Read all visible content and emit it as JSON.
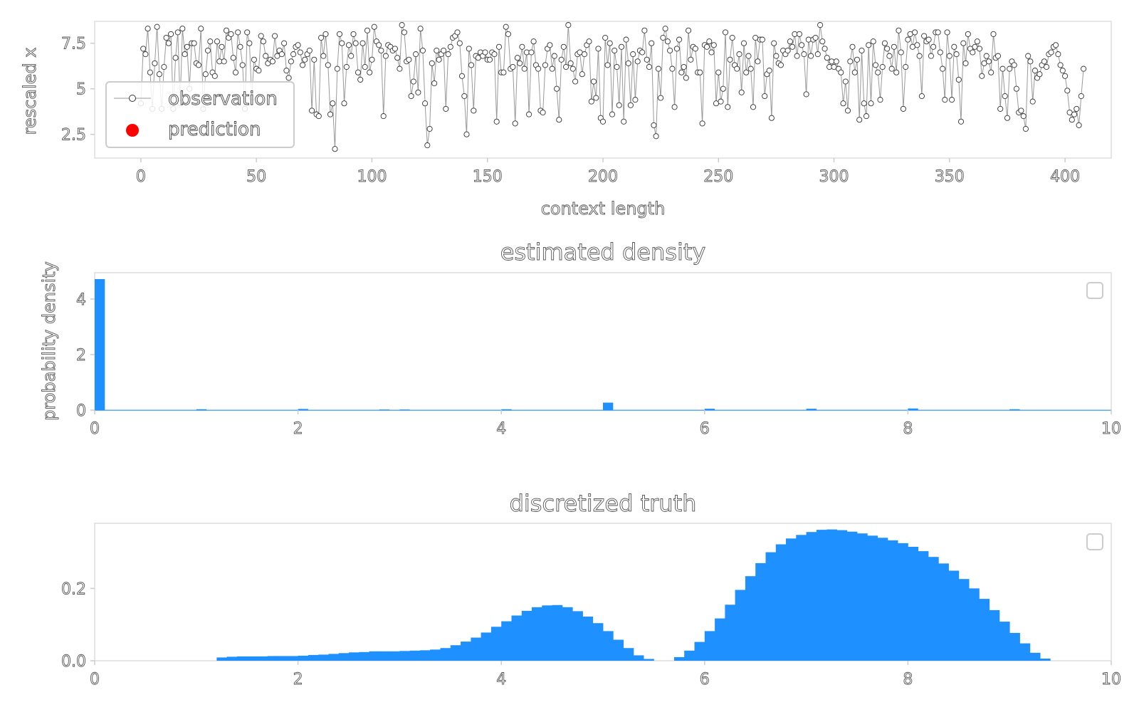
{
  "colors": {
    "bar": "#1e90ff",
    "observation_line": "#999999",
    "prediction": "#ff0000",
    "frame": "#dddddd"
  },
  "chart_data": [
    {
      "id": "series",
      "type": "line",
      "xlabel": "context length",
      "ylabel": "rescaled x",
      "xlim": [
        -20,
        420
      ],
      "ylim": [
        1.2,
        8.7
      ],
      "xticks": [
        0,
        50,
        100,
        150,
        200,
        250,
        300,
        350,
        400
      ],
      "yticks": [
        2.5,
        5.0,
        7.5
      ],
      "legend": {
        "placement": "lower-left",
        "entries": [
          "observation",
          "prediction"
        ]
      },
      "series": [
        {
          "name": "observation",
          "x_start": 0,
          "x_step": 1,
          "values": [
            4.2,
            7.2,
            6.9,
            8.3,
            5.9,
            3.9,
            6.4,
            8.4,
            5.8,
            3.9,
            6.2,
            7.8,
            7.5,
            8.0,
            3.9,
            6.7,
            8.1,
            4.2,
            8.3,
            6.9,
            7.3,
            5.0,
            7.5,
            7.5,
            6.4,
            6.3,
            8.3,
            3.9,
            5.8,
            7.1,
            7.6,
            5.9,
            5.7,
            7.6,
            6.5,
            7.3,
            6.5,
            8.2,
            7.8,
            8.0,
            6.7,
            5.9,
            8.1,
            7.3,
            6.3,
            3.9,
            8.1,
            7.5,
            4.5,
            6.6,
            6.1,
            6.0,
            7.9,
            7.6,
            6.8,
            6.4,
            6.6,
            6.5,
            7.9,
            6.8,
            7.1,
            6.9,
            7.5,
            6.0,
            5.6,
            6.5,
            6.9,
            7.3,
            7.4,
            7.0,
            6.3,
            6.6,
            6.9,
            7.1,
            3.8,
            6.6,
            3.6,
            3.5,
            7.8,
            6.8,
            8.0,
            6.3,
            3.6,
            4.2,
            1.7,
            6.1,
            8.0,
            7.5,
            4.2,
            6.2,
            7.4,
            6.8,
            8.0,
            7.5,
            5.9,
            5.5,
            7.5,
            6.2,
            8.2,
            5.9,
            6.6,
            8.4,
            7.6,
            7.4,
            7.1,
            3.5,
            6.8,
            7.4,
            7.3,
            7.1,
            7.2,
            6.7,
            6.1,
            8.5,
            8.1,
            6.5,
            6.6,
            4.6,
            5.4,
            6.9,
            4.8,
            8.3,
            7.1,
            4.2,
            1.9,
            2.8,
            6.4,
            5.3,
            7.1,
            6.6,
            6.9,
            7.1,
            3.9,
            6.9,
            7.3,
            7.8,
            7.9,
            8.1,
            7.5,
            5.7,
            4.6,
            2.5,
            7.2,
            6.3,
            3.8,
            6.8,
            6.7,
            7.0,
            6.8,
            7.0,
            6.6,
            6.6,
            7.0,
            6.9,
            3.2,
            7.3,
            5.9,
            5.9,
            8.4,
            8.0,
            6.1,
            6.2,
            3.1,
            6.7,
            6.4,
            7.3,
            6.1,
            7.0,
            3.6,
            7.0,
            7.6,
            6.3,
            6.1,
            3.8,
            3.7,
            6.3,
            7.2,
            7.4,
            6.1,
            6.8,
            5.0,
            3.3,
            6.6,
            7.3,
            6.2,
            8.5,
            6.4,
            6.1,
            5.4,
            6.9,
            7.0,
            5.8,
            6.9,
            7.4,
            7.6,
            4.3,
            5.4,
            4.5,
            7.2,
            3.4,
            3.2,
            7.8,
            6.3,
            7.5,
            3.6,
            7.1,
            6.2,
            4.1,
            7.3,
            3.2,
            7.7,
            6.4,
            4.1,
            6.9,
            4.4,
            6.5,
            7.1,
            7.0,
            8.2,
            6.6,
            6.2,
            7.5,
            3.0,
            2.4,
            6.1,
            4.5,
            7.8,
            8.3,
            7.6,
            7.1,
            6.1,
            4.0,
            7.2,
            7.7,
            5.9,
            6.2,
            5.6,
            8.2,
            6.6,
            7.3,
            7.2,
            5.9,
            5.9,
            3.1,
            7.4,
            7.3,
            7.6,
            7.0,
            7.4,
            4.2,
            5.9,
            4.3,
            5.0,
            8.1,
            4.0,
            6.6,
            7.8,
            6.3,
            6.1,
            6.9,
            4.8,
            7.5,
            5.9,
            6.8,
            6.1,
            4.0,
            7.8,
            6.5,
            7.7,
            7.7,
            4.6,
            5.8,
            6.0,
            3.4,
            7.5,
            6.8,
            6.4,
            6.3,
            7.1,
            6.9,
            7.1,
            7.6,
            7.3,
            8.0,
            6.8,
            8.0,
            7.4,
            6.9,
            4.7,
            7.7,
            6.8,
            7.7,
            7.8,
            6.9,
            8.5,
            7.6,
            7.2,
            6.7,
            6.2,
            6.5,
            6.2,
            6.5,
            6.1,
            5.9,
            4.2,
            5.4,
            3.8,
            6.5,
            7.3,
            5.9,
            6.6,
            3.3,
            7.1,
            4.2,
            3.5,
            7.4,
            4.2,
            7.6,
            6.3,
            5.9,
            4.4,
            6.2,
            7.5,
            7.2,
            6.8,
            6.1,
            7.3,
            5.9,
            8.2,
            7.0,
            3.9,
            6.2,
            7.7,
            8.0,
            7.3,
            8.1,
            7.4,
            6.8,
            4.6,
            7.9,
            7.6,
            7.7,
            6.8,
            7.3,
            8.1,
            8.1,
            7.0,
            6.1,
            4.4,
            8.1,
            6.8,
            4.4,
            7.3,
            6.9,
            5.5,
            3.2,
            7.5,
            6.4,
            8.0,
            7.2,
            7.0,
            7.3,
            7.6,
            7.2,
            5.7,
            6.4,
            6.8,
            6.5,
            5.9,
            8.0,
            6.7,
            6.8,
            3.9,
            6.1,
            4.6,
            3.4,
            6.1,
            6.5,
            6.3,
            5.0,
            3.7,
            3.8,
            3.5,
            2.8,
            6.8,
            6.5,
            4.3,
            6.0,
            5.6,
            5.8,
            6.3,
            6.5,
            6.2,
            6.9,
            7.0,
            7.3,
            7.4,
            6.9,
            6.3,
            6.0,
            5.7,
            4.9,
            3.7,
            3.3,
            3.6,
            3.9,
            3.0,
            4.6,
            6.1
          ]
        }
      ]
    },
    {
      "id": "estimated",
      "type": "bar",
      "title": "estimated density",
      "ylabel": "probability density",
      "xlim": [
        0,
        10
      ],
      "ylim": [
        0,
        4.95
      ],
      "xticks": [
        0,
        2,
        4,
        6,
        8,
        10
      ],
      "yticks": [
        0,
        2,
        4
      ],
      "bin_width": 0.1,
      "bins": [
        {
          "x": 0.05,
          "y": 4.72
        },
        {
          "x": 1.05,
          "y": 0.03
        },
        {
          "x": 2.05,
          "y": 0.04
        },
        {
          "x": 2.85,
          "y": 0.02
        },
        {
          "x": 3.05,
          "y": 0.02
        },
        {
          "x": 4.05,
          "y": 0.03
        },
        {
          "x": 5.05,
          "y": 0.27
        },
        {
          "x": 6.05,
          "y": 0.05
        },
        {
          "x": 7.05,
          "y": 0.05
        },
        {
          "x": 8.05,
          "y": 0.06
        },
        {
          "x": 9.05,
          "y": 0.03
        }
      ],
      "baseline_value": 0.008,
      "legend": {
        "placement": "top-right",
        "entries": []
      }
    },
    {
      "id": "truth",
      "type": "bar",
      "title": "discretized truth",
      "xlim": [
        0,
        10
      ],
      "ylim": [
        0,
        0.38
      ],
      "xticks": [
        0,
        2,
        4,
        6,
        8,
        10
      ],
      "yticks": [
        0.0,
        0.2
      ],
      "ytick_format": 1,
      "bin_width": 0.1,
      "values": [
        0,
        0,
        0,
        0,
        0,
        0,
        0,
        0,
        0,
        0,
        0,
        0,
        0.009,
        0.011,
        0.012,
        0.012,
        0.012,
        0.013,
        0.013,
        0.013,
        0.014,
        0.016,
        0.017,
        0.019,
        0.021,
        0.023,
        0.024,
        0.026,
        0.026,
        0.026,
        0.027,
        0.028,
        0.029,
        0.031,
        0.035,
        0.043,
        0.053,
        0.064,
        0.078,
        0.094,
        0.109,
        0.125,
        0.138,
        0.148,
        0.153,
        0.154,
        0.148,
        0.137,
        0.122,
        0.104,
        0.082,
        0.058,
        0.035,
        0.015,
        0.005,
        0,
        0,
        0.01,
        0.028,
        0.052,
        0.082,
        0.117,
        0.155,
        0.196,
        0.234,
        0.27,
        0.3,
        0.322,
        0.338,
        0.348,
        0.356,
        0.362,
        0.363,
        0.361,
        0.357,
        0.352,
        0.346,
        0.34,
        0.333,
        0.325,
        0.315,
        0.303,
        0.287,
        0.269,
        0.249,
        0.226,
        0.2,
        0.171,
        0.14,
        0.108,
        0.077,
        0.048,
        0.022,
        0.006,
        0,
        0,
        0,
        0,
        0,
        0
      ],
      "legend": {
        "placement": "top-right",
        "entries": []
      }
    }
  ]
}
